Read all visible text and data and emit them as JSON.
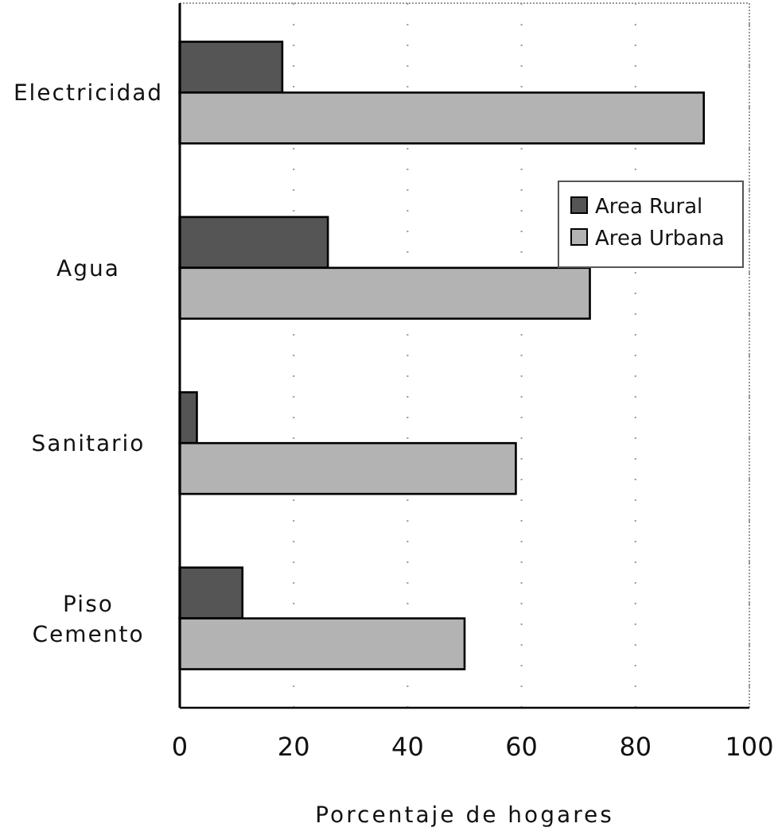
{
  "chart_data": {
    "type": "bar",
    "orientation": "horizontal",
    "categories": [
      "Electricidad",
      "Agua",
      "Sanitario",
      "Piso Cemento"
    ],
    "series": [
      {
        "name": "Area Rural",
        "color": "#555555",
        "values": [
          18,
          26,
          3,
          11
        ]
      },
      {
        "name": "Area Urbana",
        "color": "#b3b3b3",
        "values": [
          92,
          72,
          59,
          50
        ]
      }
    ],
    "xlabel": "Porcentaje de hogares",
    "xlim": [
      0,
      100
    ],
    "xticks": [
      0,
      20,
      40,
      60,
      80,
      100
    ],
    "grid": "x",
    "legend": "right"
  }
}
